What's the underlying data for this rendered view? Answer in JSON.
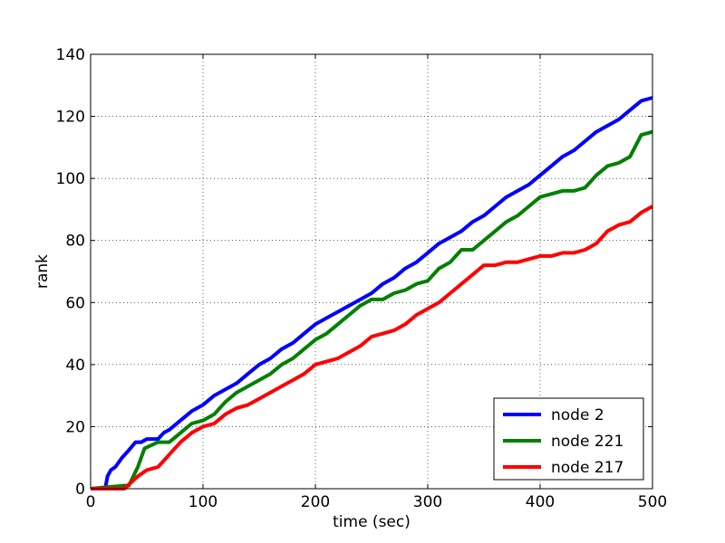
{
  "chart_data": {
    "type": "line",
    "title": "",
    "xlabel": "time (sec)",
    "ylabel": "rank",
    "xlim": [
      0,
      500
    ],
    "ylim": [
      0,
      140
    ],
    "xticks": [
      0,
      100,
      200,
      300,
      400,
      500
    ],
    "yticks": [
      0,
      20,
      40,
      60,
      80,
      100,
      120,
      140
    ],
    "grid": true,
    "legend_position": "lower-right",
    "series": [
      {
        "name": "node 2",
        "color": "#0000ff",
        "x": [
          0,
          13,
          15,
          18,
          22,
          28,
          33,
          40,
          45,
          50,
          60,
          65,
          70,
          80,
          90,
          100,
          110,
          120,
          130,
          140,
          150,
          160,
          170,
          180,
          190,
          200,
          210,
          220,
          230,
          240,
          250,
          260,
          270,
          280,
          290,
          300,
          310,
          320,
          330,
          340,
          350,
          360,
          370,
          380,
          390,
          400,
          410,
          420,
          430,
          440,
          450,
          460,
          470,
          480,
          490,
          500
        ],
        "y": [
          0,
          0,
          4,
          6,
          7,
          10,
          12,
          15,
          15,
          16,
          16,
          18,
          19,
          22,
          25,
          27,
          30,
          32,
          34,
          37,
          40,
          42,
          45,
          47,
          50,
          53,
          55,
          57,
          59,
          61,
          63,
          66,
          68,
          71,
          73,
          76,
          79,
          81,
          83,
          86,
          88,
          91,
          94,
          96,
          98,
          101,
          104,
          107,
          109,
          112,
          115,
          117,
          119,
          122,
          125,
          126
        ]
      },
      {
        "name": "node 221",
        "color": "#008000",
        "x": [
          0,
          30,
          34,
          38,
          42,
          48,
          60,
          70,
          80,
          90,
          100,
          110,
          120,
          130,
          140,
          150,
          160,
          170,
          180,
          190,
          200,
          210,
          220,
          230,
          240,
          250,
          260,
          270,
          280,
          290,
          300,
          310,
          320,
          330,
          340,
          350,
          360,
          370,
          380,
          390,
          400,
          410,
          420,
          430,
          440,
          450,
          460,
          470,
          480,
          490,
          500
        ],
        "y": [
          0,
          1,
          1,
          4,
          7,
          13,
          15,
          15,
          18,
          21,
          22,
          24,
          28,
          31,
          33,
          35,
          37,
          40,
          42,
          45,
          48,
          50,
          53,
          56,
          59,
          61,
          61,
          63,
          64,
          66,
          67,
          71,
          73,
          77,
          77,
          80,
          83,
          86,
          88,
          91,
          94,
          95,
          96,
          96,
          97,
          101,
          104,
          105,
          107,
          114,
          115
        ]
      },
      {
        "name": "node 217",
        "color": "#ff0000",
        "x": [
          0,
          30,
          36,
          42,
          50,
          60,
          70,
          80,
          90,
          100,
          110,
          120,
          130,
          140,
          150,
          160,
          170,
          180,
          190,
          200,
          210,
          220,
          230,
          240,
          250,
          260,
          270,
          280,
          290,
          300,
          310,
          320,
          330,
          340,
          350,
          360,
          370,
          380,
          390,
          400,
          410,
          420,
          430,
          440,
          450,
          460,
          470,
          480,
          490,
          500
        ],
        "y": [
          0,
          0,
          2,
          4,
          6,
          7,
          11,
          15,
          18,
          20,
          21,
          24,
          26,
          27,
          29,
          31,
          33,
          35,
          37,
          40,
          41,
          42,
          44,
          46,
          49,
          50,
          51,
          53,
          56,
          58,
          60,
          63,
          66,
          69,
          72,
          72,
          73,
          73,
          74,
          75,
          75,
          76,
          76,
          77,
          79,
          83,
          85,
          86,
          89,
          91
        ]
      }
    ]
  }
}
